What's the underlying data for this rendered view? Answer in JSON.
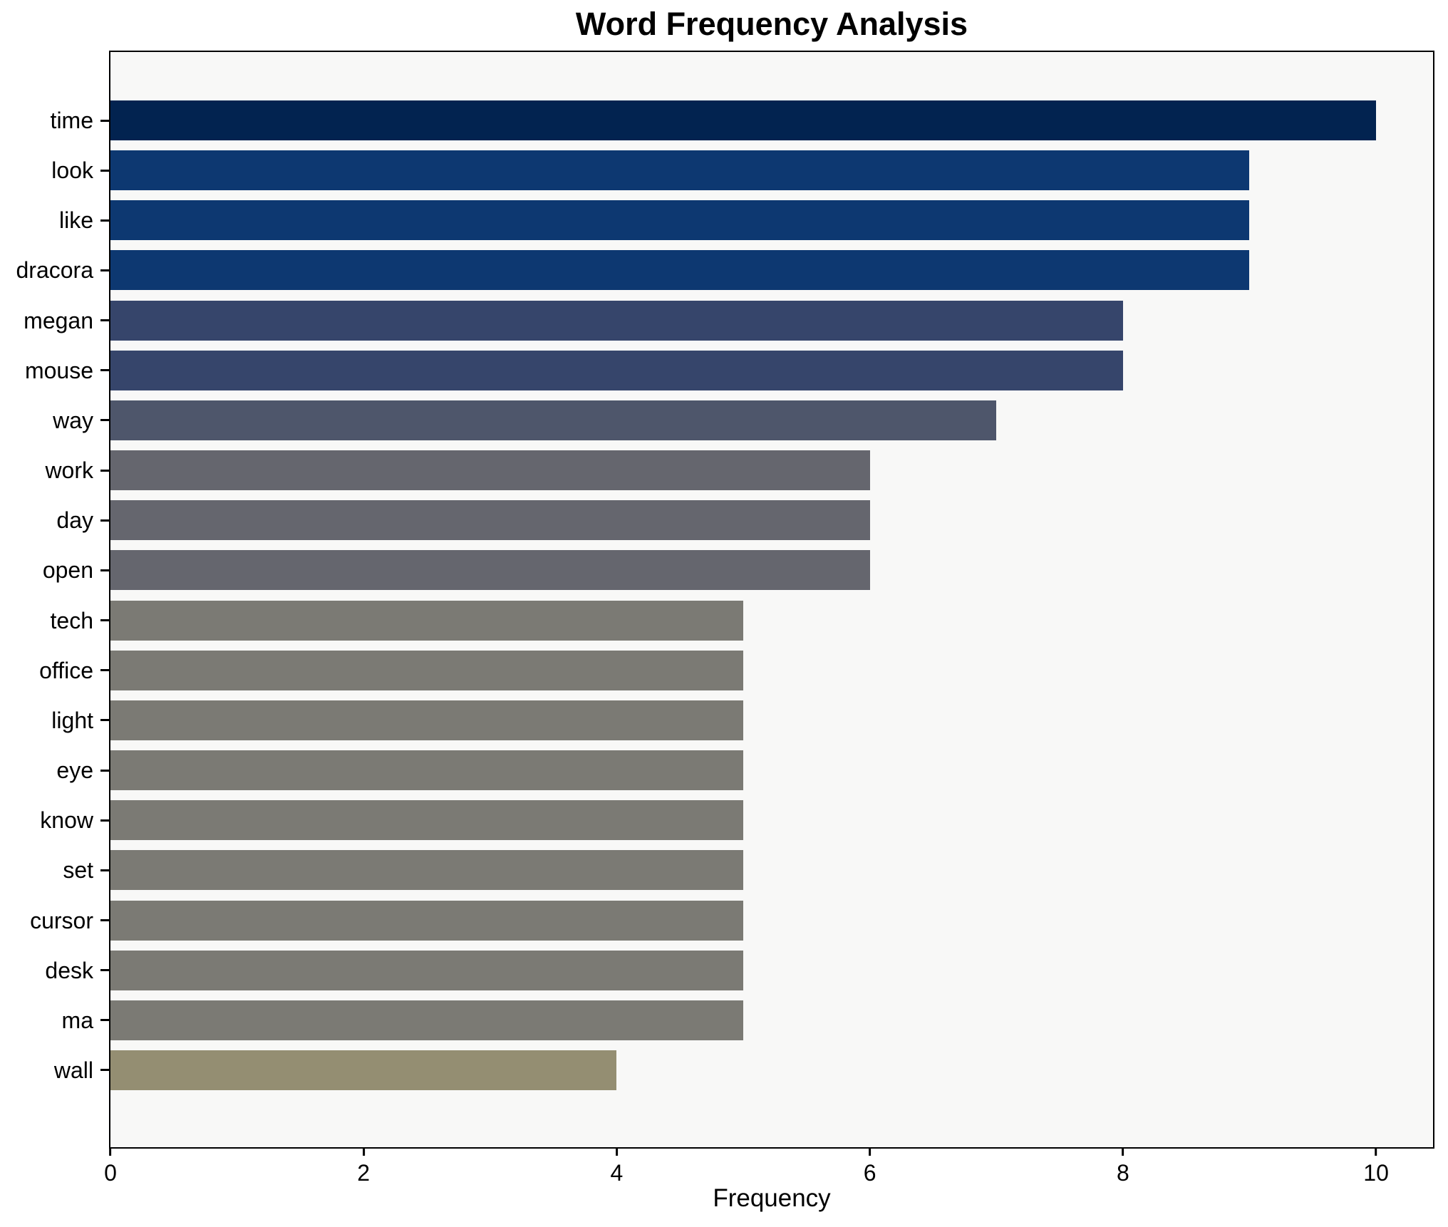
{
  "chart_data": {
    "type": "bar",
    "orientation": "horizontal",
    "title": "Word Frequency Analysis",
    "xlabel": "Frequency",
    "ylabel": "",
    "categories": [
      "time",
      "look",
      "like",
      "dracora",
      "megan",
      "mouse",
      "way",
      "work",
      "day",
      "open",
      "tech",
      "office",
      "light",
      "eye",
      "know",
      "set",
      "cursor",
      "desk",
      "ma",
      "wall"
    ],
    "values": [
      10,
      9,
      9,
      9,
      8,
      8,
      7,
      6,
      6,
      6,
      5,
      5,
      5,
      5,
      5,
      5,
      5,
      5,
      5,
      4
    ],
    "bar_colors": [
      "#022350",
      "#0d3871",
      "#0d3871",
      "#0d3871",
      "#36456b",
      "#36456b",
      "#4e566b",
      "#65666e",
      "#65666e",
      "#65666e",
      "#7b7a74",
      "#7b7a74",
      "#7b7a74",
      "#7b7a74",
      "#7b7a74",
      "#7b7a74",
      "#7b7a74",
      "#7b7a74",
      "#7b7a74",
      "#948e72"
    ],
    "xticks": [
      0,
      2,
      4,
      6,
      8,
      10
    ],
    "xlim": [
      0,
      10.45
    ],
    "grid": false,
    "legend": "none",
    "plot_bg": "#f8f8f7",
    "figure_bg": "#ffffff",
    "spine_color": "#000000"
  }
}
